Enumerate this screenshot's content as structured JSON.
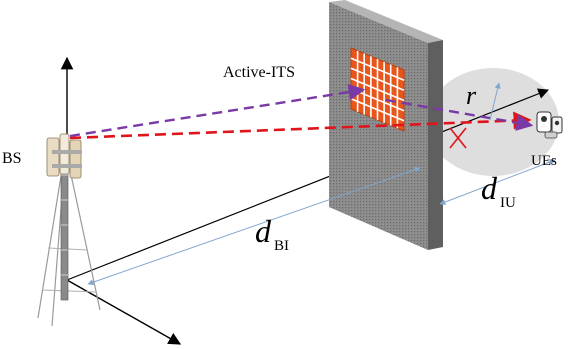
{
  "labels": {
    "bs": "BS",
    "its": "Active-ITS",
    "ues": "UEs",
    "r": "r",
    "d_bi_main": "d",
    "d_bi_sub": "BI",
    "d_iu_main": "d",
    "d_iu_sub": "IU"
  },
  "colors": {
    "direct_link": "#e0141b",
    "reflected_link": "#7a3aa6",
    "surface_cell": "#e8561c",
    "wall": "#777777",
    "coverage": "#d9d9d9",
    "distance_marker": "#7fa6cf"
  }
}
